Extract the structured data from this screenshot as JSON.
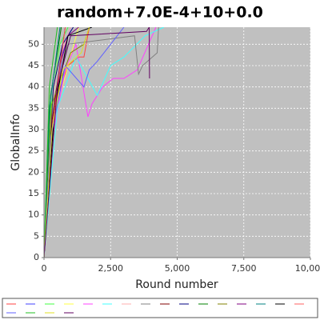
{
  "chart_data": {
    "type": "line",
    "title": "random+7.0E-4+10+0.0",
    "x_label": "Round number",
    "y_label": "GlobalInfo",
    "xlim": [
      0,
      10000
    ],
    "ylim": [
      0,
      54
    ],
    "xticks": [
      0,
      {
        "value": 2500,
        "label": "2,500"
      },
      {
        "value": 5000,
        "label": "5,000"
      },
      {
        "value": 7500,
        "label": "7,500"
      },
      {
        "value": 10000,
        "label": "10,000"
      }
    ],
    "yticks": [
      0,
      5,
      10,
      15,
      20,
      25,
      30,
      35,
      40,
      45,
      50
    ],
    "grid": true,
    "legend": "bottom",
    "series": [
      {
        "color": "#ff4040",
        "x": [
          0,
          200,
          500,
          900,
          1300,
          1500,
          1700
        ],
        "values": [
          0,
          25,
          38,
          45,
          47,
          47,
          54
        ]
      },
      {
        "color": "#4040ff",
        "x": [
          0,
          300,
          700,
          1000
        ],
        "values": [
          0,
          30,
          48,
          54
        ]
      },
      {
        "color": "#40ff40",
        "x": [
          0,
          250,
          600,
          900
        ],
        "values": [
          0,
          35,
          50,
          54
        ]
      },
      {
        "color": "#ffff40",
        "x": [
          0,
          400,
          900,
          1300
        ],
        "values": [
          0,
          33,
          45,
          54
        ]
      },
      {
        "color": "#ff40ff",
        "x": [
          0,
          300,
          800,
          1200,
          1650,
          1800,
          2200,
          2600,
          3000,
          3500,
          4200
        ],
        "values": [
          0,
          28,
          44,
          50,
          33,
          36,
          40,
          42,
          42,
          44,
          54
        ]
      },
      {
        "color": "#40ffff",
        "x": [
          0,
          500,
          1200,
          2000,
          2500,
          3000,
          3800,
          4500
        ],
        "values": [
          0,
          35,
          47,
          38,
          45,
          47,
          52,
          54
        ]
      },
      {
        "color": "#ffafaf",
        "x": [
          0,
          200,
          500,
          1000
        ],
        "values": [
          0,
          30,
          45,
          54
        ]
      },
      {
        "color": "#808080",
        "x": [
          0,
          400,
          900,
          3400,
          3550,
          3700,
          4250,
          4300
        ],
        "values": [
          0,
          38,
          50,
          52,
          43,
          45,
          48,
          54
        ]
      },
      {
        "color": "#800000",
        "x": [
          0,
          300,
          800
        ],
        "values": [
          0,
          32,
          54
        ]
      },
      {
        "color": "#000080",
        "x": [
          0,
          350,
          700,
          1100
        ],
        "values": [
          0,
          40,
          50,
          54
        ]
      },
      {
        "color": "#008000",
        "x": [
          0,
          250,
          650
        ],
        "values": [
          0,
          38,
          54
        ]
      },
      {
        "color": "#808000",
        "x": [
          0,
          300,
          1000,
          1500,
          1700
        ],
        "values": [
          0,
          36,
          48,
          50,
          54
        ]
      },
      {
        "color": "#800080",
        "x": [
          0,
          100,
          300,
          600,
          900,
          1300
        ],
        "values": [
          0,
          10,
          30,
          45,
          52,
          54
        ]
      },
      {
        "color": "#008080",
        "x": [
          0,
          200,
          600
        ],
        "values": [
          0,
          35,
          54
        ]
      },
      {
        "color": "#000000",
        "x": [
          0,
          400,
          900,
          1800
        ],
        "values": [
          0,
          35,
          52,
          54
        ]
      },
      {
        "color": "#ff6060",
        "x": [
          0,
          300,
          800
        ],
        "values": [
          0,
          30,
          54
        ]
      },
      {
        "color": "#6060ff",
        "x": [
          0,
          250,
          800,
          1500,
          1700,
          2000,
          2500,
          3000
        ],
        "values": [
          0,
          28,
          45,
          40,
          44,
          46,
          50,
          54
        ]
      },
      {
        "color": "#20c020",
        "x": [
          0,
          200,
          500
        ],
        "values": [
          0,
          40,
          54
        ]
      },
      {
        "color": "#e0e020",
        "x": [
          0,
          300,
          700,
          1400,
          1700
        ],
        "values": [
          0,
          30,
          44,
          48,
          54
        ]
      },
      {
        "color": "#600060",
        "x": [
          0,
          500,
          1000,
          3850,
          3950,
          3960
        ],
        "values": [
          0,
          40,
          52,
          53,
          54,
          42
        ]
      }
    ]
  }
}
